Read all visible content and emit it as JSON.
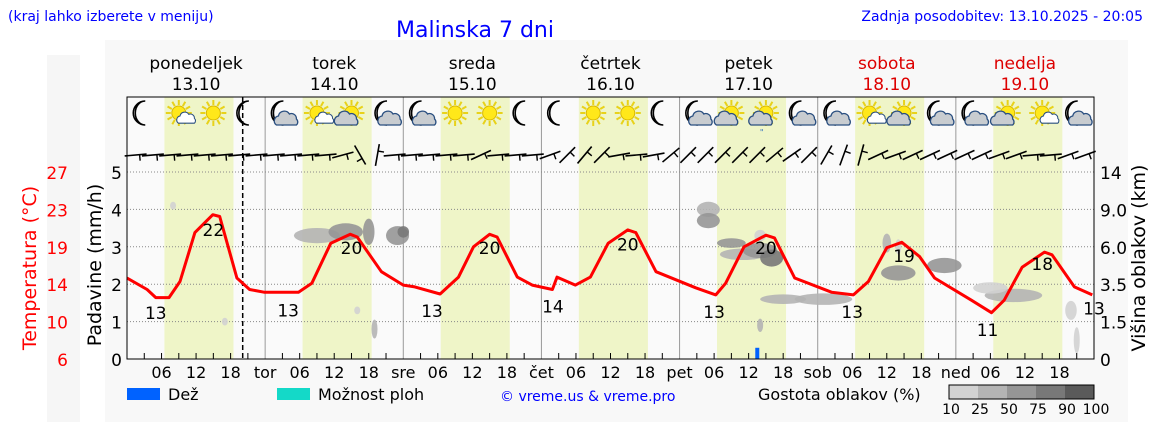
{
  "header": {
    "hint": "(kraj lahko izberete v meniju)",
    "title": "Malinska 7 dni",
    "updated": "Zadnja posodobitev: 13.10.2025 - 20:05"
  },
  "days": [
    {
      "name": "ponedeljek",
      "date": "13.10",
      "weekend": false,
      "abbr": ""
    },
    {
      "name": "torek",
      "date": "14.10",
      "weekend": false,
      "abbr": "tor"
    },
    {
      "name": "sreda",
      "date": "15.10",
      "weekend": false,
      "abbr": "sre"
    },
    {
      "name": "četrtek",
      "date": "16.10",
      "weekend": false,
      "abbr": "čet"
    },
    {
      "name": "petek",
      "date": "17.10",
      "weekend": false,
      "abbr": "pet"
    },
    {
      "name": "sobota",
      "date": "18.10",
      "weekend": true,
      "abbr": "sob"
    },
    {
      "name": "nedelja",
      "date": "19.10",
      "weekend": true,
      "abbr": "ned"
    }
  ],
  "colors": {
    "title": "#0000ff",
    "temp": "#ff0000",
    "weekend": "#dd0000",
    "day_band": "#eff5c8",
    "rain": "#0062ff",
    "showers": "#14d9c8"
  },
  "legend": {
    "rain": "Dež",
    "showers": "Možnost ploh",
    "copyright": "© vreme.us & vreme.pro",
    "cloud_density": "Gostota oblakov (%)",
    "density_levels": [
      "10",
      "25",
      "50",
      "75",
      "90",
      "100"
    ]
  },
  "chart_data": {
    "type": "line",
    "title": "Malinska 7 dni",
    "hours_total": 168,
    "now_hour": 20.1,
    "x_tick_labels": [
      "06",
      "12",
      "18"
    ],
    "left_axis": {
      "label": "Temperatura (°C)",
      "ticks": [
        "6",
        "10",
        "14",
        "19",
        "23",
        "27"
      ],
      "range": [
        6,
        27
      ]
    },
    "precip_axis": {
      "label": "Padavine (mm/h)",
      "ticks": [
        "0",
        "1",
        "2",
        "3",
        "4",
        "5"
      ],
      "range": [
        0,
        5
      ]
    },
    "right_axis": {
      "label": "Višina oblakov (km)",
      "ticks": [
        "0",
        "1.5",
        "3.5",
        "6.0",
        "9.0",
        "14"
      ]
    },
    "temperature": [
      [
        0,
        15.1
      ],
      [
        3.5,
        13.8
      ],
      [
        5,
        12.9
      ],
      [
        7.3,
        12.9
      ],
      [
        9.2,
        14.7
      ],
      [
        11.8,
        20.2
      ],
      [
        14.9,
        22.2
      ],
      [
        16.1,
        22
      ],
      [
        19.1,
        15.1
      ],
      [
        21.3,
        13.8
      ],
      [
        23.8,
        13.5
      ],
      [
        29.8,
        13.5
      ],
      [
        32.1,
        14.5
      ],
      [
        35.4,
        19
      ],
      [
        38.8,
        20
      ],
      [
        40,
        19.7
      ],
      [
        44.2,
        15.8
      ],
      [
        48,
        14.3
      ],
      [
        50,
        14.1
      ],
      [
        54.4,
        13.3
      ],
      [
        57.6,
        15.2
      ],
      [
        60.2,
        18.6
      ],
      [
        63,
        20
      ],
      [
        64.3,
        19.7
      ],
      [
        67.8,
        15.2
      ],
      [
        70.4,
        14.3
      ],
      [
        73.9,
        13.8
      ],
      [
        74.7,
        15.2
      ],
      [
        77.9,
        14.3
      ],
      [
        80.5,
        15.2
      ],
      [
        83.6,
        19
      ],
      [
        87,
        20.5
      ],
      [
        88.4,
        20.2
      ],
      [
        91.9,
        15.8
      ],
      [
        98.8,
        14
      ],
      [
        102.3,
        13.2
      ],
      [
        104,
        14.5
      ],
      [
        107.2,
        18.6
      ],
      [
        111,
        19.9
      ],
      [
        112.5,
        19.6
      ],
      [
        116,
        15.1
      ],
      [
        122.4,
        13.5
      ],
      [
        126.2,
        13.2
      ],
      [
        128.8,
        14.7
      ],
      [
        132,
        18.5
      ],
      [
        134.6,
        19.1
      ],
      [
        137.7,
        17.5
      ],
      [
        140.3,
        15.1
      ],
      [
        146.7,
        12.6
      ],
      [
        150.2,
        11.2
      ],
      [
        152.4,
        12.6
      ],
      [
        155.5,
        16.3
      ],
      [
        159.4,
        18
      ],
      [
        160.7,
        17.7
      ],
      [
        164.6,
        14.1
      ],
      [
        167.7,
        13.2
      ]
    ],
    "temp_labels": [
      {
        "text": "13",
        "hour": 5,
        "temp": 10.5
      },
      {
        "text": "22",
        "hour": 15,
        "temp": 19.8
      },
      {
        "text": "13",
        "hour": 28,
        "temp": 10.8
      },
      {
        "text": "20",
        "hour": 39,
        "temp": 17.8
      },
      {
        "text": "13",
        "hour": 53,
        "temp": 10.7
      },
      {
        "text": "20",
        "hour": 63,
        "temp": 17.8
      },
      {
        "text": "14",
        "hour": 74,
        "temp": 11.2
      },
      {
        "text": "20",
        "hour": 87,
        "temp": 18.2
      },
      {
        "text": "13",
        "hour": 102,
        "temp": 10.6
      },
      {
        "text": "20",
        "hour": 111,
        "temp": 17.8
      },
      {
        "text": "13",
        "hour": 126,
        "temp": 10.6
      },
      {
        "text": "19",
        "hour": 135,
        "temp": 16.9
      },
      {
        "text": "11",
        "hour": 149.5,
        "temp": 8.6
      },
      {
        "text": "18",
        "hour": 159,
        "temp": 16
      },
      {
        "text": "13",
        "hour": 168,
        "temp": 11
      }
    ],
    "precipitation": [
      {
        "hour": 109.5,
        "mm": 0.3,
        "type": "rain"
      }
    ],
    "weather_icons": [
      "moon",
      "sun-cloud-small",
      "sun",
      "moon",
      "moon-cloud",
      "sun-cloud-small",
      "sun-cloud",
      "moon-cloud",
      "moon-cloud",
      "sun",
      "sun",
      "moon",
      "moon",
      "sun",
      "sun",
      "moon",
      "moon-cloud",
      "sun-cloud",
      "sun-cloud-rain",
      "moon-cloud",
      "moon-cloud",
      "sun-cloud-small",
      "sun-cloud",
      "moon-cloud",
      "moon-cloud",
      "sun-cloud",
      "sun-cloud-small",
      "moon-cloud"
    ],
    "wind_tilt_deg": [
      5,
      5,
      5,
      5,
      5,
      5,
      5,
      5,
      5,
      5,
      5,
      5,
      15,
      -60,
      80,
      5,
      5,
      5,
      5,
      5,
      25,
      5,
      5,
      5,
      20,
      45,
      50,
      45,
      10,
      5,
      10,
      40,
      45,
      45,
      45,
      45,
      45,
      40,
      35,
      45,
      60,
      70,
      75,
      25,
      20,
      25,
      25,
      25,
      25,
      25,
      20,
      20,
      5,
      5,
      20,
      20
    ],
    "clouds": [
      [
        33,
        3.3,
        8,
        0.3,
        25
      ],
      [
        38,
        3.4,
        6,
        0.35,
        50
      ],
      [
        42,
        3.4,
        2,
        0.6,
        50
      ],
      [
        47,
        3.3,
        4,
        0.4,
        50
      ],
      [
        48,
        3.4,
        2,
        0.2,
        75
      ],
      [
        8,
        4.1,
        0.6,
        0.1,
        10
      ],
      [
        17,
        1,
        0.6,
        0.1,
        10
      ],
      [
        40,
        1.3,
        1,
        0.1,
        10
      ],
      [
        43,
        0.8,
        0.7,
        0.4,
        25
      ],
      [
        101,
        4.0,
        4,
        0.3,
        25
      ],
      [
        101,
        3.7,
        4,
        0.3,
        50
      ],
      [
        105,
        3.1,
        5,
        0.15,
        50
      ],
      [
        107,
        2.8,
        8,
        0.2,
        25
      ],
      [
        110,
        2.9,
        6,
        0.3,
        50
      ],
      [
        112,
        2.7,
        4,
        0.35,
        75
      ],
      [
        110,
        3.3,
        2,
        0.2,
        10
      ],
      [
        110,
        0.9,
        1,
        0.25,
        25
      ],
      [
        114,
        1.6,
        8,
        0.15,
        25
      ],
      [
        121,
        1.6,
        10,
        0.2,
        25
      ],
      [
        132,
        3.1,
        1.5,
        0.4,
        25
      ],
      [
        134,
        2.3,
        6,
        0.3,
        50
      ],
      [
        142,
        2.5,
        6,
        0.3,
        50
      ],
      [
        134,
        3.0,
        0.5,
        0.3,
        10
      ],
      [
        154,
        1.7,
        10,
        0.25,
        25
      ],
      [
        150,
        1.9,
        6,
        0.2,
        10
      ],
      [
        164,
        1.3,
        2,
        0.4,
        10
      ],
      [
        165,
        0.5,
        1,
        0.6,
        10
      ]
    ]
  }
}
